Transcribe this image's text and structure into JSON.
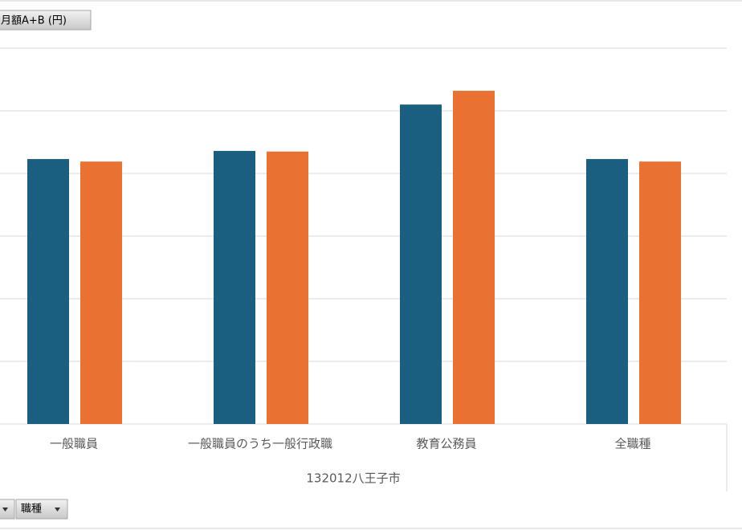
{
  "chart_data": {
    "type": "bar",
    "value_field_button": "与月額A+B (円)",
    "row_field_button": "職種",
    "group_label": "132012八王子市",
    "categories": [
      "一般職員",
      "一般職員のうち一般行政職",
      "教育公務員",
      "全職種"
    ],
    "series": [
      {
        "color": "#1a5e80",
        "values": [
          4.23,
          4.36,
          5.1,
          4.23
        ]
      },
      {
        "color": "#e97132",
        "values": [
          4.19,
          4.35,
          5.32,
          4.19
        ]
      }
    ],
    "ylim": [
      0,
      6
    ],
    "grid_lines": [
      1,
      2,
      3,
      4,
      5,
      6
    ],
    "grid": true
  }
}
